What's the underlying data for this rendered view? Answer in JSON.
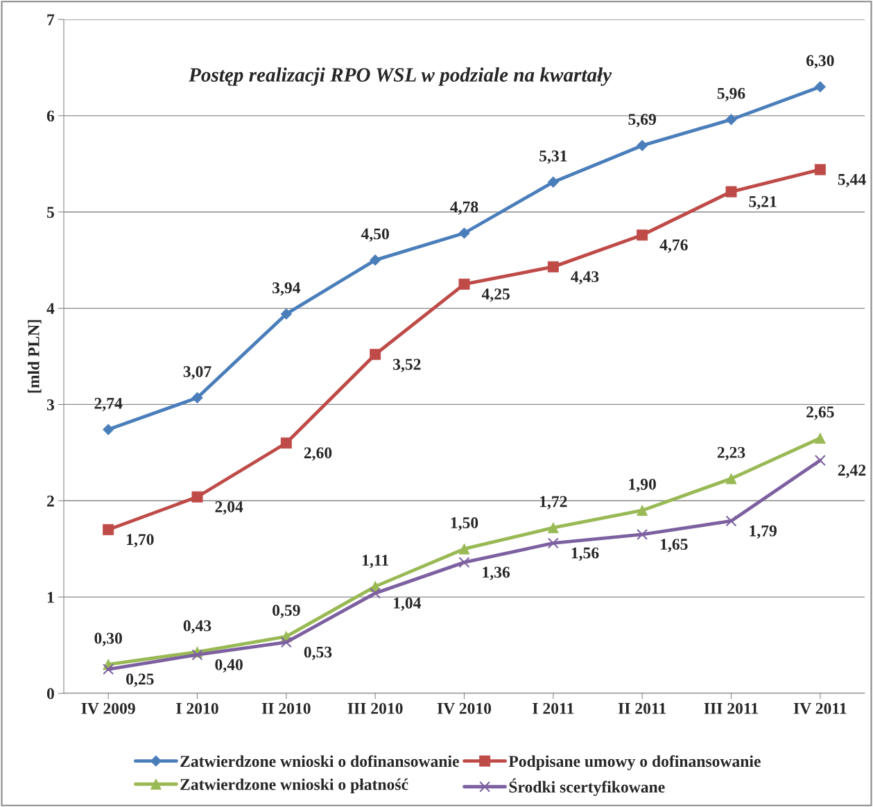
{
  "chart_data": {
    "type": "line",
    "title": "Postęp realizacji RPO WSL w podziale na kwartały",
    "ylabel": "[mld PLN]",
    "categories": [
      "IV 2009",
      "I 2010",
      "II 2010",
      "III 2010",
      "IV 2010",
      "I 2011",
      "II 2011",
      "III 2011",
      "IV 2011"
    ],
    "ylim": [
      0,
      7
    ],
    "yticks": [
      0,
      1,
      2,
      3,
      4,
      5,
      6,
      7
    ],
    "grid": "y",
    "legend": "bottom",
    "line_style": "solid",
    "series": [
      {
        "name": "Zatwierdzone wnioski o dofinansowanie",
        "color": "#4a7ebb",
        "marker": "diamond",
        "values": [
          2.74,
          3.07,
          3.94,
          4.5,
          4.78,
          5.31,
          5.69,
          5.96,
          6.3
        ],
        "value_labels": [
          "2,74",
          "3,07",
          "3,94",
          "4,50",
          "4,78",
          "5,31",
          "5,69",
          "5,96",
          "6,30"
        ]
      },
      {
        "name": "Podpisane umowy o dofinansowanie",
        "color": "#be4b48",
        "marker": "square",
        "values": [
          1.7,
          2.04,
          2.6,
          3.52,
          4.25,
          4.43,
          4.76,
          5.21,
          5.44
        ],
        "value_labels": [
          "1,70",
          "2,04",
          "2,60",
          "3,52",
          "4,25",
          "4,43",
          "4,76",
          "5,21",
          "5,44"
        ]
      },
      {
        "name": "Zatwierdzone wnioski o płatność",
        "color": "#98b954",
        "marker": "triangle",
        "values": [
          0.3,
          0.43,
          0.59,
          1.11,
          1.5,
          1.72,
          1.9,
          2.23,
          2.65
        ],
        "value_labels": [
          "0,30",
          "0,43",
          "0,59",
          "1,11",
          "1,50",
          "1,72",
          "1,90",
          "2,23",
          "2,65"
        ]
      },
      {
        "name": "Środki scertyfikowane",
        "color": "#7d60a0",
        "marker": "cross",
        "values": [
          0.25,
          0.4,
          0.53,
          1.04,
          1.36,
          1.56,
          1.65,
          1.79,
          2.42
        ],
        "value_labels": [
          "0,25",
          "0,40",
          "0,53",
          "1,04",
          "1,36",
          "1,56",
          "1,65",
          "1,79",
          "2,42"
        ]
      }
    ]
  }
}
